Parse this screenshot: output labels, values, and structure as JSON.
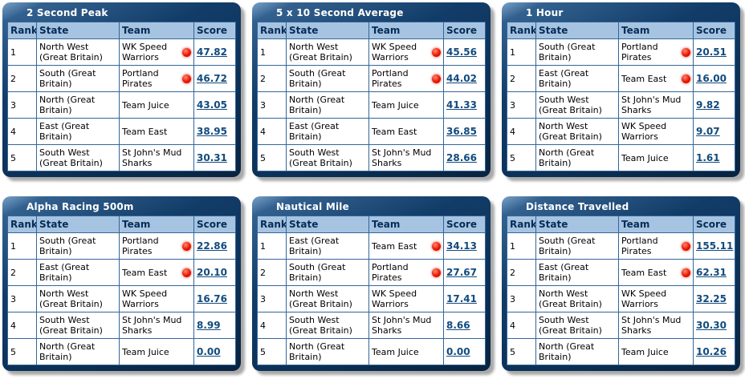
{
  "colors": {
    "frame_navy": "#0b2f55",
    "header_bg": "#a6c4e2",
    "table_border": "#336699",
    "score_link": "#114b7e",
    "record_dot": "#ea1500"
  },
  "columns": [
    "Rank",
    "State",
    "Team",
    "Score"
  ],
  "boards": [
    {
      "title": "2 Second Peak",
      "rows": [
        {
          "rank": "1",
          "state": "North West (Great Britain)",
          "team": "WK Speed Warriors",
          "dot": true,
          "score": "47.82"
        },
        {
          "rank": "2",
          "state": "South (Great Britain)",
          "team": "Portland Pirates",
          "dot": true,
          "score": "46.72"
        },
        {
          "rank": "3",
          "state": "North (Great Britain)",
          "team": "Team Juice",
          "dot": false,
          "score": "43.05"
        },
        {
          "rank": "4",
          "state": "East (Great Britain)",
          "team": "Team East",
          "dot": false,
          "score": "38.95"
        },
        {
          "rank": "5",
          "state": "South West (Great Britain)",
          "team": "St John's Mud Sharks",
          "dot": false,
          "score": "30.31"
        }
      ]
    },
    {
      "title": "5 x 10 Second Average",
      "rows": [
        {
          "rank": "1",
          "state": "North West (Great Britain)",
          "team": "WK Speed Warriors",
          "dot": true,
          "score": "45.56"
        },
        {
          "rank": "2",
          "state": "South (Great Britain)",
          "team": "Portland Pirates",
          "dot": true,
          "score": "44.02"
        },
        {
          "rank": "3",
          "state": "North (Great Britain)",
          "team": "Team Juice",
          "dot": false,
          "score": "41.33"
        },
        {
          "rank": "4",
          "state": "East (Great Britain)",
          "team": "Team East",
          "dot": false,
          "score": "36.85"
        },
        {
          "rank": "5",
          "state": "South West (Great Britain)",
          "team": "St John's Mud Sharks",
          "dot": false,
          "score": "28.66"
        }
      ]
    },
    {
      "title": "1 Hour",
      "rows": [
        {
          "rank": "1",
          "state": "South (Great Britain)",
          "team": "Portland Pirates",
          "dot": true,
          "score": "20.51"
        },
        {
          "rank": "2",
          "state": "East (Great Britain)",
          "team": "Team East",
          "dot": true,
          "score": "16.00"
        },
        {
          "rank": "3",
          "state": "South West (Great Britain)",
          "team": "St John's Mud Sharks",
          "dot": false,
          "score": "9.82"
        },
        {
          "rank": "4",
          "state": "North West (Great Britain)",
          "team": "WK Speed Warriors",
          "dot": false,
          "score": "9.07"
        },
        {
          "rank": "5",
          "state": "North (Great Britain)",
          "team": "Team Juice",
          "dot": false,
          "score": "1.61"
        }
      ]
    },
    {
      "title": "Alpha Racing 500m",
      "rows": [
        {
          "rank": "1",
          "state": "South (Great Britain)",
          "team": "Portland Pirates",
          "dot": true,
          "score": "22.86"
        },
        {
          "rank": "2",
          "state": "East (Great Britain)",
          "team": "Team East",
          "dot": true,
          "score": "20.10"
        },
        {
          "rank": "3",
          "state": "North West (Great Britain)",
          "team": "WK Speed Warriors",
          "dot": false,
          "score": "16.76"
        },
        {
          "rank": "4",
          "state": "South West (Great Britain)",
          "team": "St John's Mud Sharks",
          "dot": false,
          "score": "8.99"
        },
        {
          "rank": "5",
          "state": "North (Great Britain)",
          "team": "Team Juice",
          "dot": false,
          "score": "0.00"
        }
      ]
    },
    {
      "title": "Nautical Mile",
      "rows": [
        {
          "rank": "1",
          "state": "East (Great Britain)",
          "team": "Team East",
          "dot": true,
          "score": "34.13"
        },
        {
          "rank": "2",
          "state": "South (Great Britain)",
          "team": "Portland Pirates",
          "dot": true,
          "score": "27.67"
        },
        {
          "rank": "3",
          "state": "North West (Great Britain)",
          "team": "WK Speed Warriors",
          "dot": false,
          "score": "17.41"
        },
        {
          "rank": "4",
          "state": "South West (Great Britain)",
          "team": "St John's Mud Sharks",
          "dot": false,
          "score": "8.66"
        },
        {
          "rank": "5",
          "state": "North (Great Britain)",
          "team": "Team Juice",
          "dot": false,
          "score": "0.00"
        }
      ]
    },
    {
      "title": "Distance Travelled",
      "rows": [
        {
          "rank": "1",
          "state": "South (Great Britain)",
          "team": "Portland Pirates",
          "dot": true,
          "score": "155.11"
        },
        {
          "rank": "2",
          "state": "East (Great Britain)",
          "team": "Team East",
          "dot": true,
          "score": "62.31"
        },
        {
          "rank": "3",
          "state": "North West (Great Britain)",
          "team": "WK Speed Warriors",
          "dot": false,
          "score": "32.25"
        },
        {
          "rank": "4",
          "state": "South West (Great Britain)",
          "team": "St John's Mud Sharks",
          "dot": false,
          "score": "30.30"
        },
        {
          "rank": "5",
          "state": "North (Great Britain)",
          "team": "Team Juice",
          "dot": false,
          "score": "10.26"
        }
      ]
    }
  ]
}
